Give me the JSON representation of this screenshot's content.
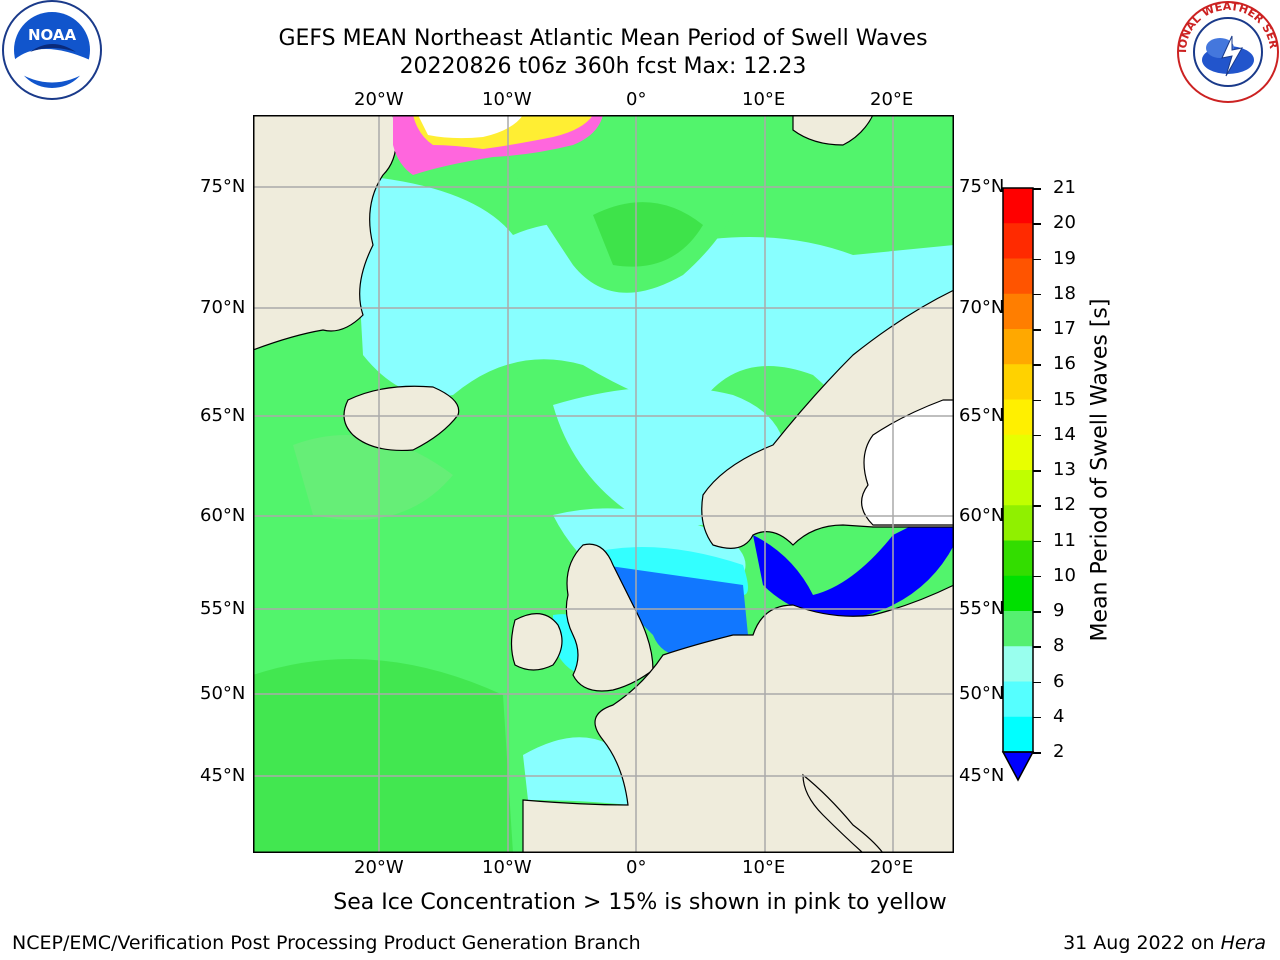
{
  "header": {
    "title_line1": "GEFS MEAN Northeast Atlantic Mean Period of Swell Waves",
    "title_line2": "20220826 t06z 360h fcst   Max: 12.23"
  },
  "logos": {
    "left": "NOAA",
    "right": "NATIONAL WEATHER SERVICE"
  },
  "map": {
    "lon_labels_top": [
      "20°W",
      "10°W",
      "0°",
      "10°E",
      "20°E"
    ],
    "lon_labels_bottom": [
      "20°W",
      "10°W",
      "0°",
      "10°E",
      "20°E"
    ],
    "lat_labels_left": [
      "75°N",
      "70°N",
      "65°N",
      "60°N",
      "55°N",
      "50°N",
      "45°N"
    ],
    "lat_labels_right": [
      "75°N",
      "70°N",
      "65°N",
      "60°N",
      "55°N",
      "50°N",
      "45°N"
    ],
    "colors": {
      "land": "#efecdc",
      "ocean_green": "#52f46c",
      "ocean_light_green": "#66ee77",
      "ocean_cyan": "#88ffff",
      "ocean_cyan_mid": "#33ffff",
      "ocean_blue": "#1177ff",
      "ocean_dark_blue": "#0000ff",
      "ice_pink": "#ff66dd",
      "ice_yellow": "#ffee33"
    }
  },
  "colorbar": {
    "label": "Mean Period of Swell Waves [s]",
    "ticks": [
      "21",
      "20",
      "19",
      "18",
      "17",
      "16",
      "15",
      "14",
      "13",
      "12",
      "11",
      "10",
      "9",
      "8",
      "6",
      "4",
      "2"
    ],
    "colors": [
      "#ff0000",
      "#ff2a00",
      "#ff5400",
      "#ff7e00",
      "#ffa800",
      "#ffd200",
      "#fff000",
      "#e8ff00",
      "#c0ff00",
      "#90f000",
      "#33dd00",
      "#00e000",
      "#55f070",
      "#99ffee",
      "#55ffff",
      "#00ffff",
      "#0077ff"
    ],
    "extend_color": "#0000ff"
  },
  "caption": "Sea Ice Concentration > 15% is shown in pink to yellow",
  "footer": {
    "left": "NCEP/EMC/Verification Post Processing Product Generation Branch",
    "right_date": "31 Aug 2022 on ",
    "right_host": "Hera"
  }
}
